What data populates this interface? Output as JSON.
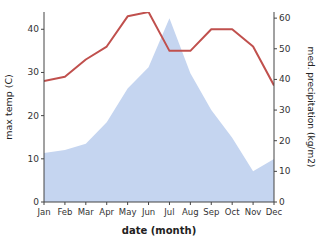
{
  "chart_data": {
    "type": "line",
    "categories": [
      "Jan",
      "Feb",
      "Mar",
      "Apr",
      "May",
      "Jun",
      "Jul",
      "Aug",
      "Sep",
      "Oct",
      "Nov",
      "Dec"
    ],
    "xlabel": "date (month)",
    "ylabel": "max temp (C)",
    "y2label": "med. precipitation (kg/m2)",
    "ylim": [
      0,
      44
    ],
    "yticks": [
      0,
      10,
      20,
      30,
      40
    ],
    "y2lim": [
      0,
      62
    ],
    "y2ticks": [
      0,
      10,
      20,
      30,
      40,
      50,
      60
    ],
    "series": [
      {
        "type": "area",
        "axis": "y2",
        "color": "#c5d5f0",
        "values": [
          16,
          17,
          19,
          26,
          37,
          44,
          60,
          42,
          30,
          21,
          10,
          14
        ]
      },
      {
        "type": "line",
        "color": "#c0504d",
        "values": [
          28,
          29,
          33,
          36,
          43,
          44,
          35,
          35,
          40,
          40,
          36,
          27
        ]
      }
    ]
  }
}
